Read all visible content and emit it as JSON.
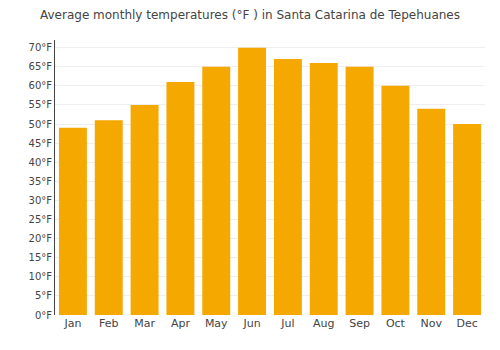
{
  "chart_data": {
    "type": "bar",
    "title": "Average monthly temperatures (°F ) in Santa Catarina de Tepehuanes",
    "categories": [
      "Jan",
      "Feb",
      "Mar",
      "Apr",
      "May",
      "Jun",
      "Jul",
      "Aug",
      "Sep",
      "Oct",
      "Nov",
      "Dec"
    ],
    "values": [
      49,
      51,
      55,
      61,
      65,
      70,
      67,
      66,
      65,
      60,
      54,
      50
    ],
    "color": "#F5A800",
    "ylim": [
      0,
      72
    ],
    "yticks": [
      {
        "value": 0,
        "label": "0°F"
      },
      {
        "value": 5,
        "label": "5°F"
      },
      {
        "value": 10,
        "label": "10°F"
      },
      {
        "value": 15,
        "label": "15°F"
      },
      {
        "value": 20,
        "label": "20°F"
      },
      {
        "value": 25,
        "label": "25°F"
      },
      {
        "value": 30,
        "label": "30°F"
      },
      {
        "value": 35,
        "label": "35°F"
      },
      {
        "value": 40,
        "label": "40°F"
      },
      {
        "value": 45,
        "label": "45°F"
      },
      {
        "value": 50,
        "label": "50°F"
      },
      {
        "value": 55,
        "label": "55°F"
      },
      {
        "value": 60,
        "label": "60°F"
      },
      {
        "value": 65,
        "label": "65°F"
      },
      {
        "value": 70,
        "label": "70°F"
      }
    ],
    "grid": true
  }
}
